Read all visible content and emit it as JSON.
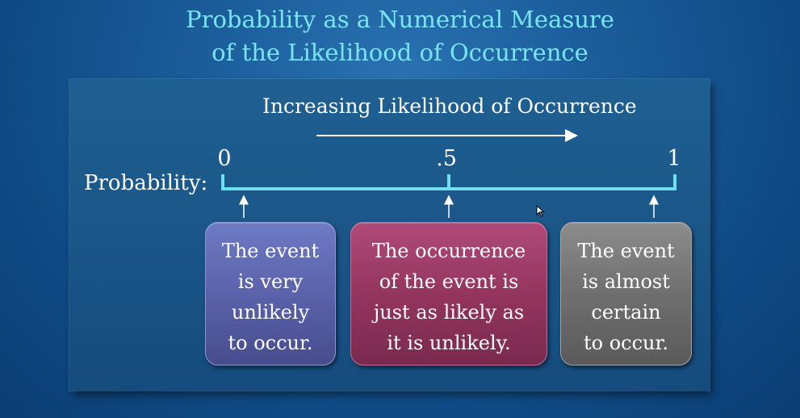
{
  "title": {
    "line1": "Probability as a Numerical Measure",
    "line2": "of the Likelihood of Occurrence"
  },
  "heading": "Increasing Likelihood of Occurrence",
  "axis_label": "Probability:",
  "ticks": [
    {
      "label": "0",
      "value": 0
    },
    {
      "label": ".5",
      "value": 0.5
    },
    {
      "label": "1",
      "value": 1
    }
  ],
  "boxes": [
    {
      "lines": [
        "The event",
        "is very",
        "unlikely",
        "to occur."
      ]
    },
    {
      "lines": [
        "The occurrence",
        "of the event is",
        "just as likely as",
        "it is unlikely."
      ]
    },
    {
      "lines": [
        "The event",
        "is almost",
        "certain",
        "to occur."
      ]
    }
  ],
  "colors": {
    "title": "#77e5f2",
    "scale_line": "#6fe0f0",
    "box_low": "#5a62aa",
    "box_mid": "#94355f",
    "box_high": "#6f6f6f"
  }
}
